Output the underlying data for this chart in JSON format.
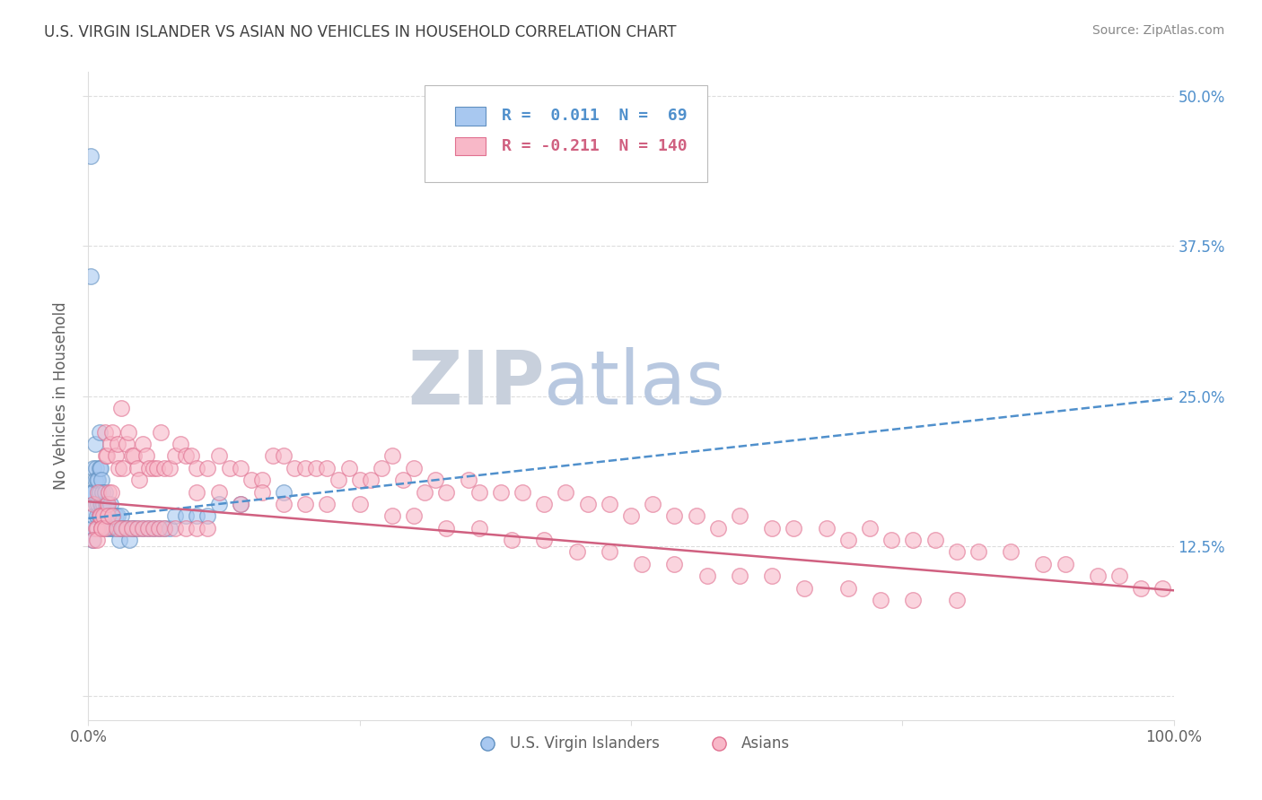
{
  "title": "U.S. VIRGIN ISLANDER VS ASIAN NO VEHICLES IN HOUSEHOLD CORRELATION CHART",
  "source": "Source: ZipAtlas.com",
  "ylabel": "No Vehicles in Household",
  "yticks": [
    0.0,
    0.125,
    0.25,
    0.375,
    0.5
  ],
  "ytick_labels_right": [
    "",
    "12.5%",
    "25.0%",
    "37.5%",
    "50.0%"
  ],
  "xlim": [
    0.0,
    1.0
  ],
  "ylim": [
    -0.02,
    0.52
  ],
  "legend_r1": "R =  0.011",
  "legend_n1": "N =  69",
  "legend_r2": "R = -0.211",
  "legend_n2": "N = 140",
  "blue_scatter_color": "#A8C8F0",
  "blue_edge_color": "#6090C0",
  "pink_scatter_color": "#F8B8C8",
  "pink_edge_color": "#E07090",
  "blue_line_color": "#5090CC",
  "pink_line_color": "#D06080",
  "title_color": "#404040",
  "source_color": "#888888",
  "axis_color": "#606060",
  "grid_color": "#DDDDDD",
  "watermark_zip_color": "#C8D0DC",
  "watermark_atlas_color": "#B8C8E0",
  "blue_scatter_x": [
    0.002,
    0.002,
    0.003,
    0.004,
    0.004,
    0.004,
    0.005,
    0.005,
    0.005,
    0.006,
    0.006,
    0.007,
    0.007,
    0.008,
    0.008,
    0.009,
    0.009,
    0.01,
    0.01,
    0.01,
    0.01,
    0.011,
    0.011,
    0.012,
    0.012,
    0.013,
    0.013,
    0.014,
    0.015,
    0.015,
    0.016,
    0.016,
    0.017,
    0.018,
    0.018,
    0.019,
    0.02,
    0.02,
    0.021,
    0.022,
    0.023,
    0.024,
    0.025,
    0.026,
    0.027,
    0.028,
    0.029,
    0.03,
    0.031,
    0.032,
    0.034,
    0.036,
    0.038,
    0.04,
    0.042,
    0.045,
    0.05,
    0.055,
    0.06,
    0.065,
    0.07,
    0.075,
    0.08,
    0.09,
    0.1,
    0.11,
    0.12,
    0.14,
    0.18
  ],
  "blue_scatter_y": [
    0.45,
    0.35,
    0.17,
    0.17,
    0.14,
    0.13,
    0.19,
    0.17,
    0.15,
    0.21,
    0.18,
    0.19,
    0.16,
    0.18,
    0.15,
    0.18,
    0.16,
    0.22,
    0.19,
    0.17,
    0.15,
    0.19,
    0.16,
    0.18,
    0.16,
    0.17,
    0.15,
    0.16,
    0.17,
    0.15,
    0.16,
    0.14,
    0.16,
    0.15,
    0.14,
    0.15,
    0.16,
    0.14,
    0.15,
    0.14,
    0.15,
    0.14,
    0.15,
    0.14,
    0.15,
    0.14,
    0.13,
    0.15,
    0.14,
    0.14,
    0.14,
    0.14,
    0.13,
    0.14,
    0.14,
    0.14,
    0.14,
    0.14,
    0.14,
    0.14,
    0.14,
    0.14,
    0.15,
    0.15,
    0.15,
    0.15,
    0.16,
    0.16,
    0.17
  ],
  "pink_scatter_x": [
    0.005,
    0.007,
    0.008,
    0.009,
    0.01,
    0.011,
    0.012,
    0.014,
    0.015,
    0.016,
    0.017,
    0.018,
    0.019,
    0.02,
    0.021,
    0.022,
    0.025,
    0.027,
    0.028,
    0.03,
    0.032,
    0.035,
    0.037,
    0.04,
    0.042,
    0.045,
    0.047,
    0.05,
    0.053,
    0.056,
    0.06,
    0.063,
    0.067,
    0.07,
    0.075,
    0.08,
    0.085,
    0.09,
    0.095,
    0.1,
    0.11,
    0.12,
    0.13,
    0.14,
    0.15,
    0.16,
    0.17,
    0.18,
    0.19,
    0.2,
    0.21,
    0.22,
    0.23,
    0.24,
    0.25,
    0.26,
    0.27,
    0.28,
    0.29,
    0.3,
    0.31,
    0.32,
    0.33,
    0.35,
    0.36,
    0.38,
    0.4,
    0.42,
    0.44,
    0.46,
    0.48,
    0.5,
    0.52,
    0.54,
    0.56,
    0.58,
    0.6,
    0.63,
    0.65,
    0.68,
    0.7,
    0.72,
    0.74,
    0.76,
    0.78,
    0.8,
    0.82,
    0.85,
    0.88,
    0.9,
    0.93,
    0.95,
    0.97,
    0.99,
    0.1,
    0.12,
    0.14,
    0.16,
    0.18,
    0.2,
    0.22,
    0.25,
    0.28,
    0.3,
    0.33,
    0.36,
    0.39,
    0.42,
    0.45,
    0.48,
    0.51,
    0.54,
    0.57,
    0.6,
    0.63,
    0.66,
    0.7,
    0.73,
    0.76,
    0.8,
    0.005,
    0.008,
    0.012,
    0.015,
    0.018,
    0.022,
    0.026,
    0.03,
    0.035,
    0.04,
    0.045,
    0.05,
    0.055,
    0.06,
    0.065,
    0.07,
    0.08,
    0.09,
    0.1,
    0.11
  ],
  "pink_scatter_y": [
    0.16,
    0.14,
    0.14,
    0.17,
    0.15,
    0.15,
    0.14,
    0.15,
    0.22,
    0.2,
    0.2,
    0.16,
    0.17,
    0.21,
    0.17,
    0.22,
    0.2,
    0.21,
    0.19,
    0.24,
    0.19,
    0.21,
    0.22,
    0.2,
    0.2,
    0.19,
    0.18,
    0.21,
    0.2,
    0.19,
    0.19,
    0.19,
    0.22,
    0.19,
    0.19,
    0.2,
    0.21,
    0.2,
    0.2,
    0.19,
    0.19,
    0.2,
    0.19,
    0.19,
    0.18,
    0.18,
    0.2,
    0.2,
    0.19,
    0.19,
    0.19,
    0.19,
    0.18,
    0.19,
    0.18,
    0.18,
    0.19,
    0.2,
    0.18,
    0.19,
    0.17,
    0.18,
    0.17,
    0.18,
    0.17,
    0.17,
    0.17,
    0.16,
    0.17,
    0.16,
    0.16,
    0.15,
    0.16,
    0.15,
    0.15,
    0.14,
    0.15,
    0.14,
    0.14,
    0.14,
    0.13,
    0.14,
    0.13,
    0.13,
    0.13,
    0.12,
    0.12,
    0.12,
    0.11,
    0.11,
    0.1,
    0.1,
    0.09,
    0.09,
    0.17,
    0.17,
    0.16,
    0.17,
    0.16,
    0.16,
    0.16,
    0.16,
    0.15,
    0.15,
    0.14,
    0.14,
    0.13,
    0.13,
    0.12,
    0.12,
    0.11,
    0.11,
    0.1,
    0.1,
    0.1,
    0.09,
    0.09,
    0.08,
    0.08,
    0.08,
    0.13,
    0.13,
    0.14,
    0.14,
    0.15,
    0.15,
    0.14,
    0.14,
    0.14,
    0.14,
    0.14,
    0.14,
    0.14,
    0.14,
    0.14,
    0.14,
    0.14,
    0.14,
    0.14,
    0.14
  ],
  "blue_trend_x": [
    0.0,
    1.0
  ],
  "blue_trend_y": [
    0.148,
    0.248
  ],
  "pink_trend_x": [
    0.0,
    1.0
  ],
  "pink_trend_y": [
    0.162,
    0.088
  ]
}
